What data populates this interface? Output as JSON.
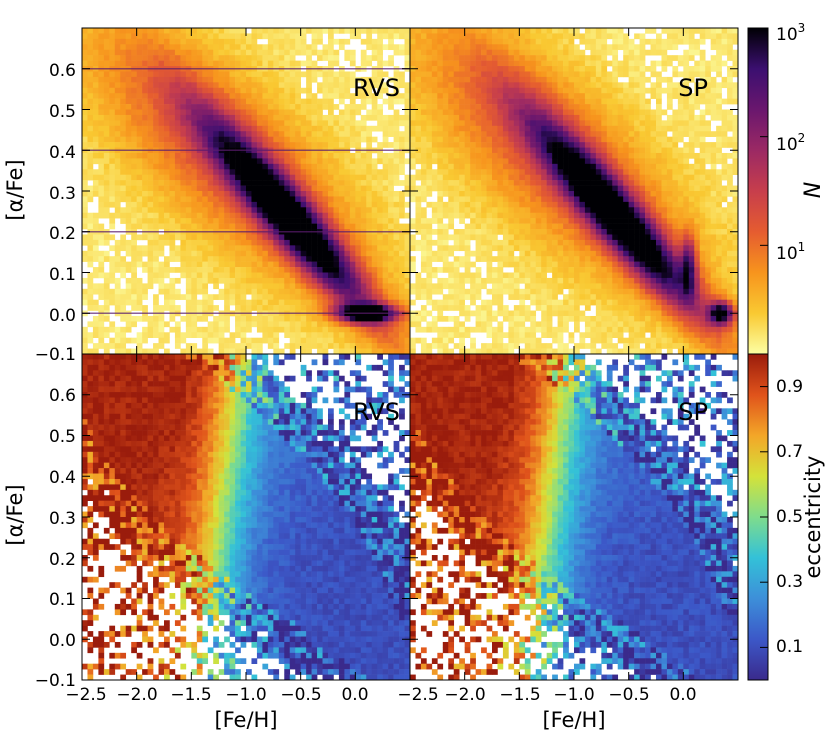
{
  "chart_data": [
    {
      "type": "heatmap",
      "panel": "top-left",
      "label": "RVS",
      "quantity": "N",
      "ylabel": "[α/Fe]",
      "xlim": [
        -2.5,
        0.5
      ],
      "ylim": [
        -0.1,
        0.7
      ],
      "yticks": [
        -0.1,
        0.0,
        0.1,
        0.2,
        0.3,
        0.4,
        0.5,
        0.6
      ],
      "description_of_density": "dense ridge from [Fe/H]=-1.0,[a/Fe]=0.35 down to [Fe/H]=0.2,[a/Fe]=0.0; grid artifacts at [a/Fe]=0.0,0.2,0.4,0.6"
    },
    {
      "type": "heatmap",
      "panel": "top-right",
      "label": "SP",
      "quantity": "N",
      "xlim": [
        -2.5,
        0.5
      ],
      "ylim": [
        -0.1,
        0.7
      ]
    },
    {
      "type": "heatmap",
      "panel": "bottom-left",
      "label": "RVS",
      "quantity": "eccentricity",
      "xlabel": "[Fe/H]",
      "ylabel": "[α/Fe]",
      "xlim": [
        -2.5,
        0.5
      ],
      "ylim": [
        -0.1,
        0.7
      ],
      "xticks": [
        -2.5,
        -2.0,
        -1.5,
        -1.0,
        -0.5,
        0.0
      ],
      "yticks": [
        -0.1,
        0.0,
        0.1,
        0.2,
        0.3,
        0.4,
        0.5,
        0.6
      ]
    },
    {
      "type": "heatmap",
      "panel": "bottom-right",
      "label": "SP",
      "quantity": "eccentricity",
      "xlabel": "[Fe/H]",
      "xlim": [
        -2.5,
        0.5
      ],
      "ylim": [
        -0.1,
        0.7
      ],
      "xticks": [
        -2.5,
        -2.0,
        -1.5,
        -1.0,
        -0.5,
        0.0
      ]
    }
  ],
  "colorbars": {
    "top": {
      "label": "N",
      "scale": "log",
      "range": [
        1,
        1000
      ],
      "tick_labels": [
        {
          "value": 1000,
          "base": "10",
          "exp": "3"
        },
        {
          "value": 100,
          "base": "10",
          "exp": "2"
        },
        {
          "value": 10,
          "base": "10",
          "exp": "1"
        }
      ]
    },
    "bottom": {
      "label": "eccentricity",
      "scale": "linear",
      "range": [
        0.0,
        1.0
      ],
      "tick_labels": [
        "0.9",
        "0.7",
        "0.5",
        "0.3",
        "0.1"
      ],
      "tick_values": [
        0.9,
        0.7,
        0.5,
        0.3,
        0.1
      ]
    }
  },
  "axis_text": {
    "ylabel_top": "[α/Fe]",
    "ylabel_bottom": "[α/Fe]",
    "xlabel_left": "[Fe/H]",
    "xlabel_right": "[Fe/H]",
    "ytick_labels_top": [
      "0.6",
      "0.5",
      "0.4",
      "0.3",
      "0.2",
      "0.1",
      "0.0",
      "−0.1"
    ],
    "ytick_labels_bottom": [
      "0.6",
      "0.5",
      "0.4",
      "0.3",
      "0.2",
      "0.1",
      "0.0",
      "−0.1"
    ],
    "xtick_labels_left": [
      "−2.5",
      "−2.0",
      "−1.5",
      "−1.0",
      "−0.5",
      "0.0"
    ],
    "xtick_labels_right": [
      "−2.5",
      "−2.0",
      "−1.5",
      "−1.0",
      "−0.5",
      "0.0"
    ]
  },
  "panel_labels": {
    "top_left": "RVS",
    "top_right": "SP",
    "bottom_left": "RVS",
    "bottom_right": "SP"
  },
  "colors": {
    "inferno_stops": [
      "#fcffa4",
      "#f9c932",
      "#f7941d",
      "#e55c30",
      "#c73e4c",
      "#9b2964",
      "#6a176e",
      "#3b0f70",
      "#000004"
    ],
    "jet_stops": [
      "#3a2a8c",
      "#3c58c8",
      "#3d8fd9",
      "#33c1d8",
      "#7fdc8c",
      "#d4e23a",
      "#f3a628",
      "#e0531b",
      "#9a1c0c"
    ]
  }
}
